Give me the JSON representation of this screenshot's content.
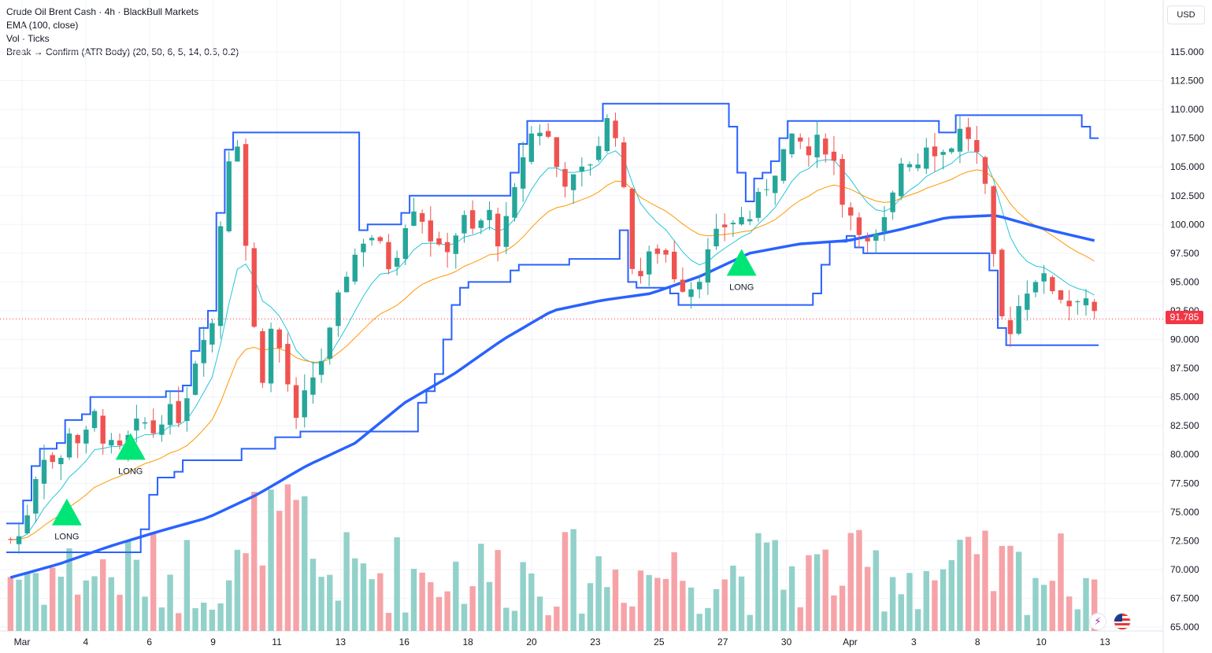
{
  "legend": {
    "title": "Crude Oil Brent Cash · 4h · BlackBull Markets",
    "ema": "EMA (100, close)",
    "vol": "Vol · Ticks",
    "indicator": "Break → Confirm (ATR Body) (20, 50, 6, 5, 14, 0.5, 0.2)"
  },
  "currency": "USD",
  "last_price": "91.785",
  "signal_label": "LONG",
  "colors": {
    "up": "#26a69a",
    "down": "#ef5350",
    "ema100": "#2962ff",
    "channel": "#2962ff",
    "ema_fast": "#26c6da",
    "ema_slow": "#ff9800",
    "signal": "#00e676",
    "vol_up": "#92d1ca",
    "vol_down": "#f6a3a8",
    "last_price": "#f23645"
  },
  "icons": [
    "bolt-icon",
    "us-flag-icon"
  ],
  "chart_data": {
    "type": "candlestick",
    "ylim": [
      65,
      116.5
    ],
    "y_ticks": [
      "65.000",
      "67.500",
      "70.000",
      "72.500",
      "75.000",
      "77.500",
      "80.000",
      "82.500",
      "85.000",
      "87.500",
      "90.000",
      "92.500",
      "95.000",
      "97.500",
      "100.000",
      "102.500",
      "105.000",
      "107.500",
      "110.000",
      "112.500",
      "115.000"
    ],
    "x_labels": [
      "Mar",
      "4",
      "6",
      "9",
      "11",
      "13",
      "16",
      "18",
      "20",
      "23",
      "25",
      "27",
      "30",
      "Apr",
      "3",
      "8",
      "10",
      "13"
    ],
    "signals": [
      {
        "label": "LONG",
        "x": "4",
        "price": 74.8
      },
      {
        "label": "LONG",
        "x": "6",
        "price": 80.5
      },
      {
        "label": "LONG",
        "x": "27",
        "price": 96.5
      }
    ],
    "close_path": [
      72.6,
      73.0,
      78.0,
      80.5,
      78.5,
      82.5,
      80.5,
      83.5,
      81.0,
      80.0,
      81.5,
      83.0,
      82.0,
      84.0,
      83.0,
      86.0,
      90.5,
      91.5,
      105.0,
      108.0,
      95.0,
      86.0,
      91.5,
      87.5,
      82.5,
      86.0,
      88.0,
      91.0,
      95.5,
      97.5,
      99.5,
      98.0,
      96.0,
      100.0,
      102.0,
      99.5,
      97.5,
      98.5,
      100.5,
      99.0,
      101.5,
      98.5,
      101.0,
      106.0,
      108.5,
      108.0,
      104.5,
      103.5,
      104.5,
      106.0,
      109.0,
      108.0,
      97.0,
      95.5,
      98.0,
      97.5,
      95.0,
      94.5,
      96.0,
      98.5,
      100.0,
      100.5,
      100.5,
      102.5,
      104.5,
      106.5,
      107.5,
      106.0,
      107.5,
      106.0,
      101.5,
      100.5,
      98.0,
      99.0,
      102.0,
      106.5,
      105.0,
      107.5,
      106.0,
      107.0,
      108.5,
      106.5,
      102.0,
      92.0,
      91.0,
      94.0,
      95.5,
      95.0,
      94.0,
      93.0,
      94.5,
      91.8
    ],
    "ema100_path": [
      69.3,
      70.5,
      72.0,
      73.3,
      74.5,
      76.5,
      79.0,
      81.0,
      84.5,
      87.0,
      90.0,
      92.5,
      93.4,
      94.0,
      95.5,
      97.5,
      98.3,
      98.6,
      99.5,
      100.6,
      100.8,
      99.6,
      98.6
    ],
    "volume_ticks": "relative only; volume pane has no printed scale"
  }
}
